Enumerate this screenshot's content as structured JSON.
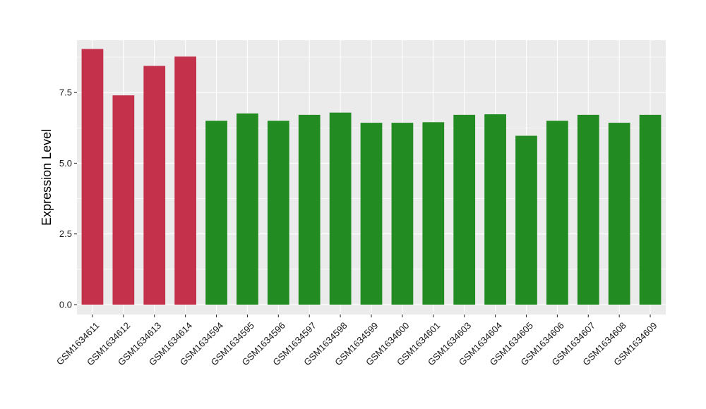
{
  "chart_data": {
    "type": "bar",
    "title": "",
    "xlabel": "",
    "ylabel": "Expression Level",
    "ylim": [
      -0.35,
      9.35
    ],
    "yticks": [
      0.0,
      2.5,
      5.0,
      7.5
    ],
    "ytick_labels": [
      "0.0",
      "2.5",
      "5.0",
      "7.5"
    ],
    "grid": true,
    "legend": "none",
    "colors": {
      "panel": "#ebebeb",
      "grid": "#ffffff",
      "group_high": "#c4314b",
      "group_low": "#228b22"
    },
    "categories": [
      "GSM1634611",
      "GSM1634612",
      "GSM1634613",
      "GSM1634614",
      "GSM1634594",
      "GSM1634595",
      "GSM1634596",
      "GSM1634597",
      "GSM1634598",
      "GSM1634599",
      "GSM1634600",
      "GSM1634601",
      "GSM1634603",
      "GSM1634604",
      "GSM1634605",
      "GSM1634606",
      "GSM1634607",
      "GSM1634608",
      "GSM1634609"
    ],
    "values": [
      9.04,
      7.4,
      8.44,
      8.77,
      6.5,
      6.76,
      6.5,
      6.71,
      6.79,
      6.43,
      6.43,
      6.45,
      6.71,
      6.73,
      5.97,
      6.5,
      6.71,
      6.43,
      6.71
    ],
    "bar_colors": [
      "#c4314b",
      "#c4314b",
      "#c4314b",
      "#c4314b",
      "#228b22",
      "#228b22",
      "#228b22",
      "#228b22",
      "#228b22",
      "#228b22",
      "#228b22",
      "#228b22",
      "#228b22",
      "#228b22",
      "#228b22",
      "#228b22",
      "#228b22",
      "#228b22",
      "#228b22"
    ]
  }
}
